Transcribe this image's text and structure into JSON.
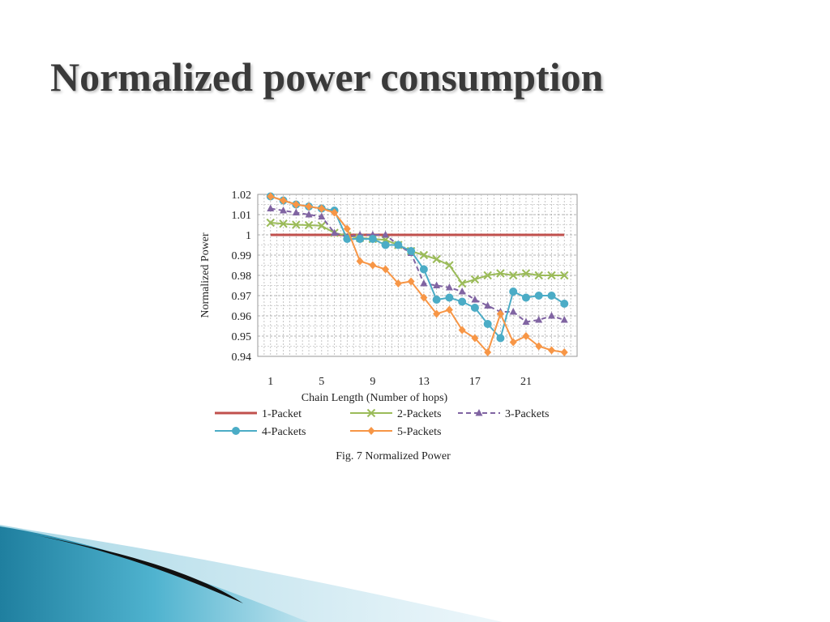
{
  "slide": {
    "title": "Normalized power consumption",
    "caption": "Fig. 7 Normalized Power"
  },
  "chart_data": {
    "type": "line",
    "title": "",
    "xlabel": "Chain Length (Number of hops)",
    "ylabel": "Normalized Power",
    "x": [
      1,
      2,
      3,
      4,
      5,
      6,
      7,
      8,
      9,
      10,
      11,
      12,
      13,
      14,
      15,
      16,
      17,
      18,
      19,
      20,
      21,
      22,
      23,
      24
    ],
    "x_tick_labels": [
      "1",
      "5",
      "9",
      "13",
      "17",
      "21"
    ],
    "x_tick_values": [
      1,
      5,
      9,
      13,
      17,
      21
    ],
    "ylim": [
      0.94,
      1.02
    ],
    "y_ticks": [
      0.94,
      0.95,
      0.96,
      0.97,
      0.98,
      0.99,
      1,
      1.01,
      1.02
    ],
    "y_tick_labels": [
      "0.94",
      "0.95",
      "0.96",
      "0.97",
      "0.98",
      "0.99",
      "1",
      "1.01",
      "1.02"
    ],
    "grid": true,
    "legend_position": "bottom",
    "series": [
      {
        "name": "1-Packet",
        "color": "#c0504d",
        "marker": "none",
        "dash": "solid",
        "values": [
          1,
          1,
          1,
          1,
          1,
          1,
          1,
          1,
          1,
          1,
          1,
          1,
          1,
          1,
          1,
          1,
          1,
          1,
          1,
          1,
          1,
          1,
          1,
          1
        ]
      },
      {
        "name": "2-Packets",
        "color": "#9bbb59",
        "marker": "x",
        "dash": "solid",
        "values": [
          1.006,
          1.0055,
          1.005,
          1.0048,
          1.0045,
          1.001,
          0.9995,
          0.9985,
          0.998,
          0.9975,
          0.995,
          0.992,
          0.99,
          0.988,
          0.985,
          0.976,
          0.978,
          0.98,
          0.981,
          0.98,
          0.981,
          0.98,
          0.98,
          0.98
        ]
      },
      {
        "name": "3-Packets",
        "color": "#8064a2",
        "marker": "triangle",
        "dash": "dashed",
        "values": [
          1.013,
          1.012,
          1.011,
          1.01,
          1.009,
          1.001,
          0.999,
          1.0,
          1.0,
          1.0,
          0.995,
          0.991,
          0.976,
          0.975,
          0.974,
          0.972,
          0.968,
          0.965,
          0.962,
          0.962,
          0.957,
          0.958,
          0.96,
          0.958
        ]
      },
      {
        "name": "4-Packets",
        "color": "#4bacc6",
        "marker": "circle",
        "dash": "solid",
        "values": [
          1.019,
          1.017,
          1.015,
          1.014,
          1.013,
          1.012,
          0.998,
          0.998,
          0.998,
          0.995,
          0.995,
          0.992,
          0.983,
          0.968,
          0.969,
          0.967,
          0.964,
          0.956,
          0.949,
          0.972,
          0.969,
          0.97,
          0.97,
          0.966
        ]
      },
      {
        "name": "5-Packets",
        "color": "#f79646",
        "marker": "diamond",
        "dash": "solid",
        "values": [
          1.019,
          1.017,
          1.015,
          1.014,
          1.013,
          1.011,
          1.003,
          0.987,
          0.985,
          0.983,
          0.976,
          0.977,
          0.969,
          0.961,
          0.963,
          0.953,
          0.949,
          0.942,
          0.961,
          0.947,
          0.95,
          0.945,
          0.943,
          0.942
        ]
      }
    ]
  }
}
